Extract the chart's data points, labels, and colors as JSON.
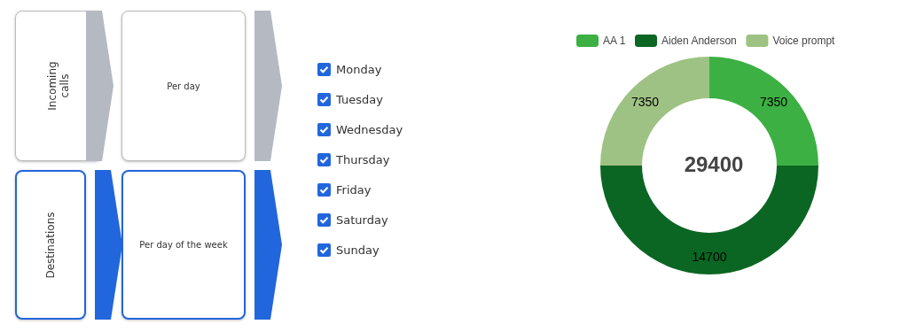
{
  "chart_data": [
    {
      "type": "other",
      "annotations": [
        "Incoming calls",
        "Per day",
        "Destinations",
        "Per day of the week",
        "Monday",
        "Tuesday",
        "Wednesday",
        "Thursday",
        "Friday",
        "Saturday",
        "Sunday"
      ]
    },
    {
      "type": "donut",
      "categories": [
        "AA 1",
        "Aiden Anderson",
        "Voice prompt"
      ],
      "values": [
        7350,
        14700,
        7350
      ],
      "colors": [
        "#3cb043",
        "#0b6623",
        "#9ec283"
      ],
      "data_labels": true,
      "legend": "top",
      "annotations": [
        "29400"
      ]
    }
  ]
}
